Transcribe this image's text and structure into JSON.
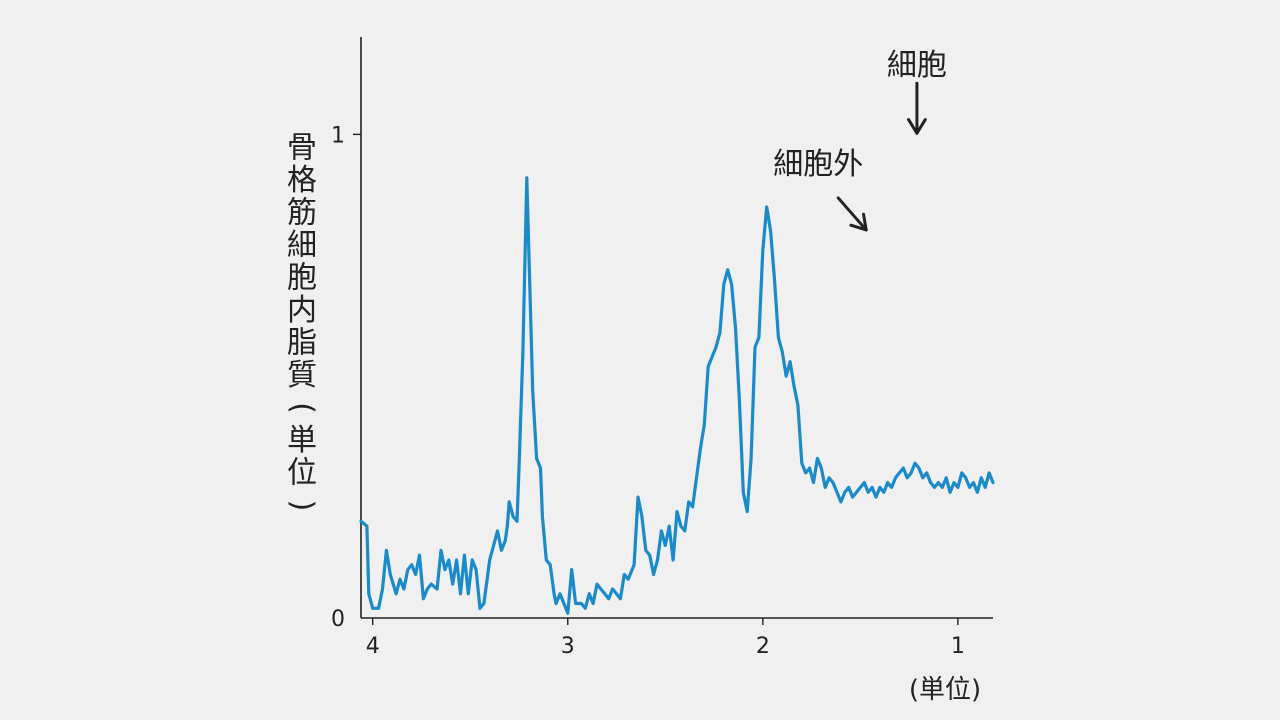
{
  "chart_data": {
    "type": "line",
    "title": "",
    "ylabel": "骨格筋細胞内脂質（単位）",
    "xlabel": "",
    "x_unit": "(単位)",
    "xlim": [
      4.06,
      0.82
    ],
    "ylim": [
      0,
      1.16
    ],
    "x_reversed": true,
    "x_ticks": [
      {
        "value": 4,
        "label": "4"
      },
      {
        "value": 3,
        "label": "3"
      },
      {
        "value": 2,
        "label": "2"
      },
      {
        "value": 1,
        "label": "1"
      }
    ],
    "y_ticks": [
      {
        "value": 0,
        "label": "0"
      },
      {
        "value": 1,
        "label": "1"
      }
    ],
    "grid": false,
    "series": [
      {
        "name": "",
        "color": "#1a8ac8",
        "x": [
          4.06,
          4.03,
          4.02,
          4.0,
          3.97,
          3.95,
          3.93,
          3.91,
          3.88,
          3.86,
          3.84,
          3.82,
          3.8,
          3.78,
          3.76,
          3.74,
          3.72,
          3.7,
          3.67,
          3.65,
          3.63,
          3.61,
          3.59,
          3.57,
          3.55,
          3.53,
          3.51,
          3.49,
          3.47,
          3.45,
          3.43,
          3.4,
          3.38,
          3.36,
          3.34,
          3.32,
          3.31,
          3.3,
          3.28,
          3.26,
          3.25,
          3.23,
          3.21,
          3.19,
          3.18,
          3.16,
          3.14,
          3.13,
          3.11,
          3.09,
          3.07,
          3.06,
          3.04,
          3.02,
          3.0,
          2.98,
          2.96,
          2.94,
          2.93,
          2.91,
          2.89,
          2.87,
          2.85,
          2.83,
          2.81,
          2.79,
          2.77,
          2.75,
          2.73,
          2.71,
          2.69,
          2.66,
          2.64,
          2.62,
          2.6,
          2.58,
          2.56,
          2.54,
          2.52,
          2.5,
          2.48,
          2.46,
          2.44,
          2.42,
          2.4,
          2.38,
          2.36,
          2.34,
          2.32,
          2.3,
          2.28,
          2.26,
          2.24,
          2.22,
          2.2,
          2.18,
          2.16,
          2.14,
          2.12,
          2.1,
          2.08,
          2.06,
          2.04,
          2.02,
          2.0,
          1.98,
          1.96,
          1.94,
          1.92,
          1.9,
          1.88,
          1.86,
          1.84,
          1.82,
          1.8,
          1.78,
          1.76,
          1.74,
          1.72,
          1.7,
          1.68,
          1.66,
          1.64,
          1.62,
          1.6,
          1.58,
          1.56,
          1.54,
          1.52,
          1.5,
          1.48,
          1.46,
          1.44,
          1.42,
          1.4,
          1.38,
          1.36,
          1.34,
          1.32,
          1.3,
          1.28,
          1.26,
          1.24,
          1.22,
          1.2,
          1.18,
          1.16,
          1.14,
          1.12,
          1.1,
          1.08,
          1.06,
          1.04,
          1.02,
          1.0,
          0.98,
          0.96,
          0.94,
          0.92,
          0.9,
          0.88,
          0.86,
          0.84,
          0.82
        ],
        "y": [
          0.2,
          0.19,
          0.05,
          0.02,
          0.02,
          0.06,
          0.14,
          0.09,
          0.05,
          0.08,
          0.06,
          0.1,
          0.11,
          0.09,
          0.13,
          0.04,
          0.06,
          0.07,
          0.06,
          0.14,
          0.1,
          0.12,
          0.07,
          0.12,
          0.05,
          0.13,
          0.05,
          0.12,
          0.1,
          0.02,
          0.03,
          0.12,
          0.15,
          0.18,
          0.14,
          0.16,
          0.19,
          0.24,
          0.21,
          0.2,
          0.31,
          0.55,
          0.91,
          0.62,
          0.47,
          0.33,
          0.31,
          0.21,
          0.12,
          0.11,
          0.05,
          0.03,
          0.05,
          0.03,
          0.01,
          0.1,
          0.03,
          0.03,
          0.03,
          0.02,
          0.05,
          0.03,
          0.07,
          0.06,
          0.05,
          0.04,
          0.06,
          0.05,
          0.04,
          0.09,
          0.08,
          0.11,
          0.25,
          0.21,
          0.14,
          0.13,
          0.09,
          0.12,
          0.18,
          0.15,
          0.19,
          0.12,
          0.22,
          0.19,
          0.18,
          0.24,
          0.23,
          0.29,
          0.35,
          0.4,
          0.52,
          0.54,
          0.56,
          0.59,
          0.69,
          0.72,
          0.69,
          0.6,
          0.45,
          0.26,
          0.22,
          0.33,
          0.56,
          0.58,
          0.76,
          0.85,
          0.8,
          0.7,
          0.58,
          0.55,
          0.5,
          0.53,
          0.48,
          0.44,
          0.32,
          0.3,
          0.31,
          0.28,
          0.33,
          0.31,
          0.27,
          0.29,
          0.28,
          0.26,
          0.24,
          0.26,
          0.27,
          0.25,
          0.26,
          0.27,
          0.28,
          0.26,
          0.27,
          0.25,
          0.27,
          0.26,
          0.28,
          0.27,
          0.29,
          0.3,
          0.31,
          0.29,
          0.3,
          0.32,
          0.31,
          0.29,
          0.3,
          0.28,
          0.27,
          0.28,
          0.27,
          0.29,
          0.26,
          0.28,
          0.27,
          0.3,
          0.29,
          0.27,
          0.28,
          0.26,
          0.29,
          0.27,
          0.3,
          0.28
        ]
      }
    ],
    "annotations": [
      {
        "text": "細胞外",
        "x": 1.47,
        "y": 0.79
      },
      {
        "text": "細胞",
        "x": 1.21,
        "y": 0.99
      }
    ]
  }
}
